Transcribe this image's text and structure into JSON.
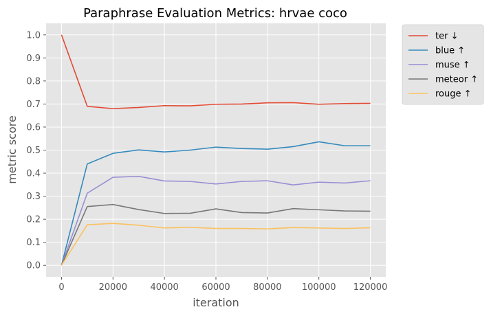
{
  "chart_data": {
    "type": "line",
    "title": "Paraphrase Evaluation Metrics: hrvae coco",
    "xlabel": "iteration",
    "ylabel": "metric score",
    "x": [
      0,
      10000,
      20000,
      30000,
      40000,
      50000,
      60000,
      70000,
      80000,
      90000,
      100000,
      110000,
      120000
    ],
    "xlim": [
      -6000,
      126000
    ],
    "ylim": [
      -0.05,
      1.05
    ],
    "xticks": [
      0,
      20000,
      40000,
      60000,
      80000,
      100000,
      120000
    ],
    "yticks": [
      0.0,
      0.1,
      0.2,
      0.3,
      0.4,
      0.5,
      0.6,
      0.7,
      0.8,
      0.9,
      1.0
    ],
    "xtick_labels": [
      "0",
      "20000",
      "40000",
      "60000",
      "80000",
      "100000",
      "120000"
    ],
    "ytick_labels": [
      "0.0",
      "0.1",
      "0.2",
      "0.3",
      "0.4",
      "0.5",
      "0.6",
      "0.7",
      "0.8",
      "0.9",
      "1.0"
    ],
    "grid": true,
    "legend_position": "outside-top-right",
    "background": "#e5e5e5",
    "series": [
      {
        "name": "ter ↓",
        "color": "#e24a33",
        "values": [
          1.0,
          0.69,
          0.68,
          0.685,
          0.693,
          0.692,
          0.699,
          0.7,
          0.705,
          0.706,
          0.699,
          0.702,
          0.703
        ]
      },
      {
        "name": "blue ↑",
        "color": "#348abd",
        "values": [
          0.0,
          0.44,
          0.486,
          0.501,
          0.492,
          0.5,
          0.513,
          0.507,
          0.504,
          0.515,
          0.536,
          0.519,
          0.519
        ]
      },
      {
        "name": "muse ↑",
        "color": "#988ed5",
        "values": [
          0.0,
          0.313,
          0.382,
          0.386,
          0.366,
          0.364,
          0.353,
          0.364,
          0.367,
          0.349,
          0.361,
          0.357,
          0.367
        ]
      },
      {
        "name": "meteor ↑",
        "color": "#777777",
        "values": [
          0.0,
          0.255,
          0.264,
          0.242,
          0.225,
          0.226,
          0.245,
          0.229,
          0.227,
          0.246,
          0.241,
          0.236,
          0.235
        ]
      },
      {
        "name": "rouge ↑",
        "color": "#fbc15e",
        "values": [
          0.0,
          0.176,
          0.182,
          0.174,
          0.162,
          0.165,
          0.16,
          0.16,
          0.158,
          0.164,
          0.162,
          0.16,
          0.163
        ]
      }
    ]
  }
}
